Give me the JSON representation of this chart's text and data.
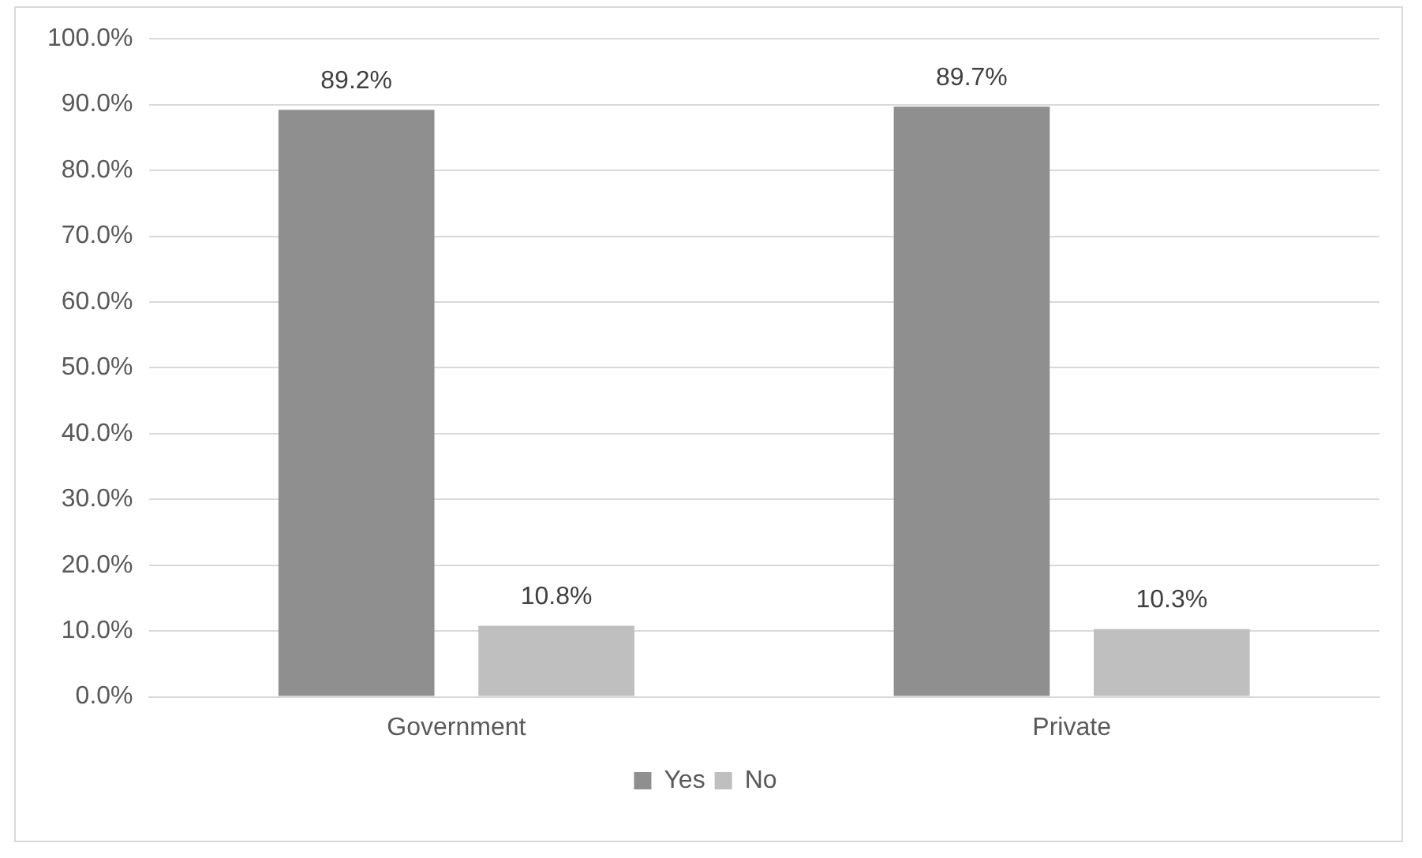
{
  "chart_data": {
    "type": "bar",
    "categories": [
      "Government",
      "Private"
    ],
    "series": [
      {
        "name": "Yes",
        "color": "#8f8f8f",
        "values": [
          89.2,
          89.7
        ],
        "value_labels": [
          "89.2%",
          "89.7%"
        ]
      },
      {
        "name": "No",
        "color": "#bfbfbf",
        "values": [
          10.8,
          10.3
        ],
        "value_labels": [
          "10.8%",
          "10.3%"
        ]
      }
    ],
    "ylim": [
      0,
      100
    ],
    "yticks": [
      {
        "value": 0,
        "label": "0.0%"
      },
      {
        "value": 10,
        "label": "10.0%"
      },
      {
        "value": 20,
        "label": "20.0%"
      },
      {
        "value": 30,
        "label": "30.0%"
      },
      {
        "value": 40,
        "label": "40.0%"
      },
      {
        "value": 50,
        "label": "50.0%"
      },
      {
        "value": 60,
        "label": "60.0%"
      },
      {
        "value": 70,
        "label": "70.0%"
      },
      {
        "value": 80,
        "label": "80.0%"
      },
      {
        "value": 90,
        "label": "90.0%"
      },
      {
        "value": 100,
        "label": "100.0%"
      }
    ],
    "grid": "y",
    "legend": "bottom"
  }
}
